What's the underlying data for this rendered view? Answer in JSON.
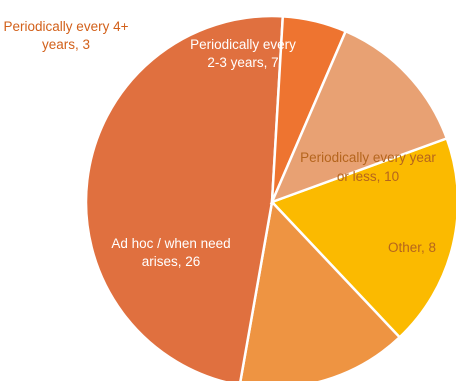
{
  "chart_data": {
    "type": "pie",
    "title": "",
    "start_angle_deg": -20,
    "direction": "clockwise",
    "slices": [
      {
        "label": "Periodically every year or less, 10",
        "name": "Periodically every year or less",
        "value": 10,
        "color": "#FBBA00",
        "label_color": "#B5651D"
      },
      {
        "label": "Other, 8",
        "name": "Other",
        "value": 8,
        "color": "#EE9442",
        "label_color": "#B5651D"
      },
      {
        "label": "Ad hoc / when need arises, 26",
        "name": "Ad hoc / when need arises",
        "value": 26,
        "color": "#E0703F",
        "label_color": "#FFFFFF"
      },
      {
        "label": "Periodically every 4+ years, 3",
        "name": "Periodically every 4+ years",
        "value": 3,
        "color": "#EE7430",
        "label_color": "#D2601A"
      },
      {
        "label": "Periodically every 2-3 years, 7",
        "name": "Periodically every 2-3 years",
        "value": 7,
        "color": "#E8A173",
        "label_color": "#FFFFFF"
      }
    ]
  }
}
